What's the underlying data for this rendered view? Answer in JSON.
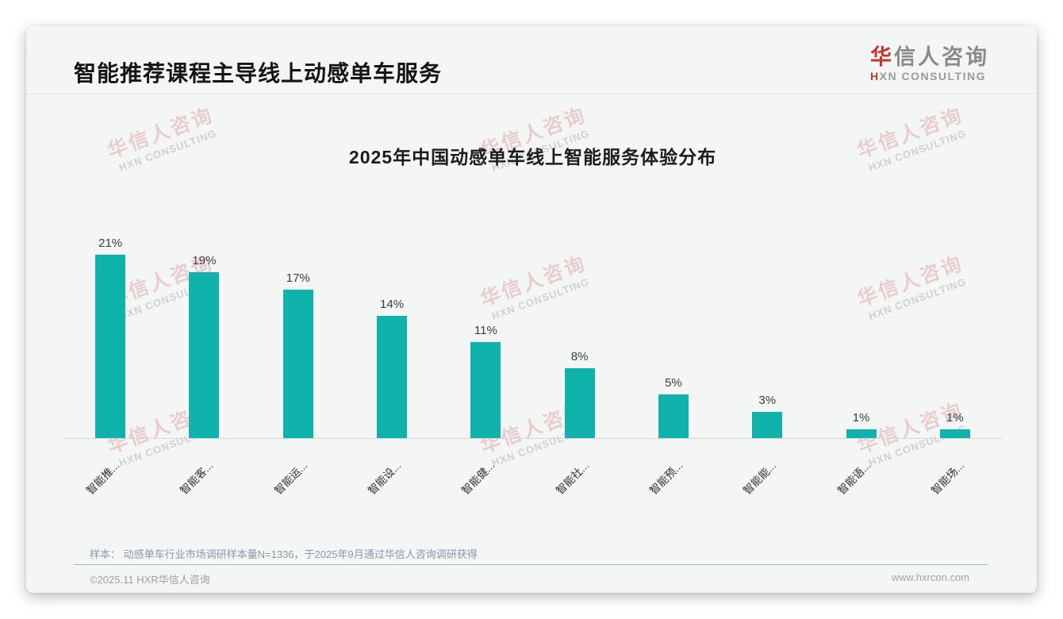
{
  "page": {
    "title": "智能推荐课程主导线上动感单车服务",
    "logo": {
      "cn_accent": "华",
      "cn_rest": "信人咨询",
      "en_accent": "H",
      "en_rest": "XN CONSULTING"
    },
    "watermark": {
      "cn": "华信人咨询",
      "en": "HXN CONSULTING"
    },
    "note_label": "样本：",
    "note_text": "动感单车行业市场调研样本量N=1336，于2025年9月通过华信人咨询调研获得",
    "footer": {
      "copyright": "©2025.11 HXR华信人咨询",
      "website": "www.hxrcon.com"
    }
  },
  "chart_data": {
    "type": "bar",
    "title": "2025年中国动感单车线上智能服务体验分布",
    "categories": [
      "智能推...",
      "智能客...",
      "智能运...",
      "智能设...",
      "智能健...",
      "智能社...",
      "智能预...",
      "智能能...",
      "智能语...",
      "智能场..."
    ],
    "values": [
      21,
      19,
      17,
      14,
      11,
      8,
      5,
      3,
      1,
      1
    ],
    "value_labels": [
      "21%",
      "19%",
      "17%",
      "14%",
      "11%",
      "8%",
      "5%",
      "3%",
      "1%",
      "1%"
    ],
    "xlabel": "",
    "ylabel": "",
    "ylim": [
      0,
      23
    ],
    "grid": false,
    "legend": null,
    "bar_color": "#0fb3ab"
  },
  "colors": {
    "bar": "#0fb3ab",
    "accent_red": "#c5352c",
    "card_bg": "#f4f5f5",
    "page_bg": "#ffffff",
    "note_text": "#8d97aa",
    "footer_divider": "#9fb2c6"
  }
}
